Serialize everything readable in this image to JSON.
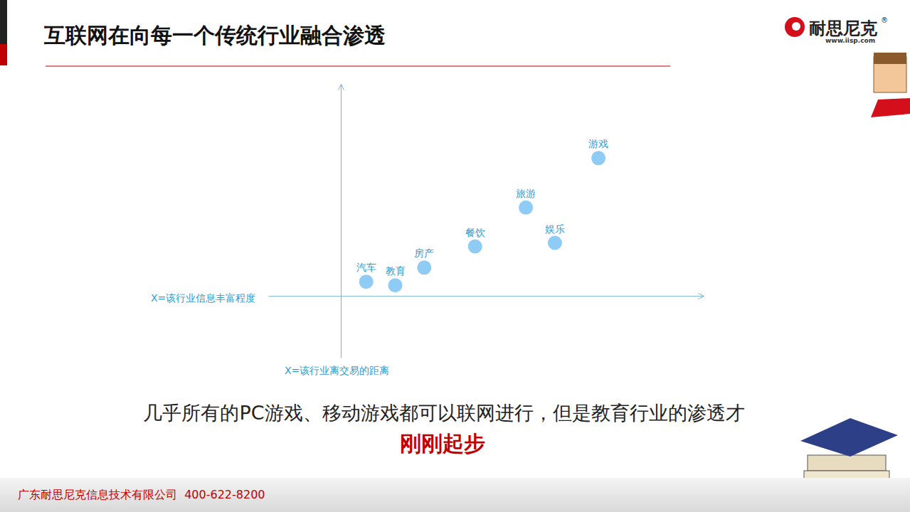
{
  "slide": {
    "title": "互联网在向每一个传统行业融合渗透",
    "brand": "耐思尼克",
    "registered": "®",
    "website": "www.iisp.com",
    "caption": "几乎所有的PC游戏、移动游戏都可以联网进行，但是教育行业的渗透才",
    "highlight": "刚刚起步",
    "footer": "广东耐思尼克信息技术有限公司  400-622-8200"
  },
  "chart_data": {
    "type": "scatter",
    "x_label": "X=该行业信息丰富程度",
    "y_label": "X=该行业离交易的距离",
    "categories": [
      "汽车",
      "教育",
      "房产",
      "餐饮",
      "旅游",
      "娱乐",
      "游戏"
    ],
    "x": [
      0.7,
      1.5,
      2.3,
      3.7,
      5.1,
      5.9,
      7.1
    ],
    "values": [
      0.4,
      0.3,
      0.8,
      1.4,
      2.5,
      1.5,
      3.9
    ],
    "color": "#8ecbf5",
    "xlim": [
      -2,
      10
    ],
    "ylim": [
      -1.75,
      6
    ],
    "tick_labels": false,
    "grid": false
  }
}
